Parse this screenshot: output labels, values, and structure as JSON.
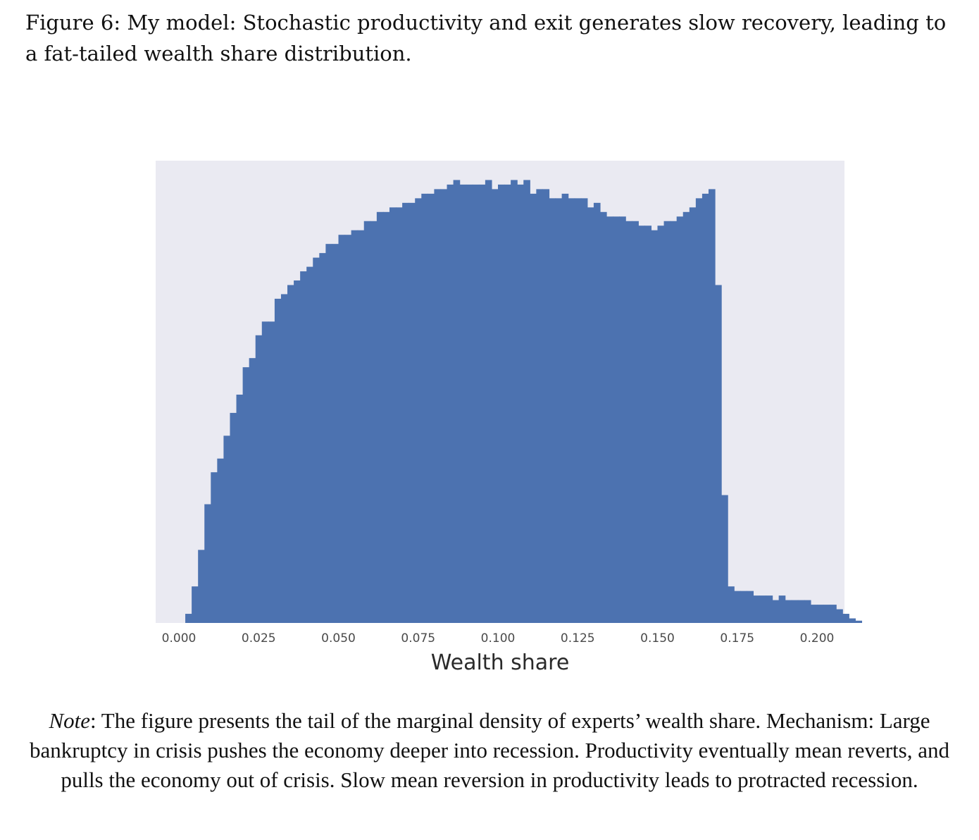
{
  "figure": {
    "caption": "Figure 6: My model: Stochastic productivity and exit generates slow recovery, leading to a fat-tailed wealth share distribution."
  },
  "note": {
    "label": "Note",
    "text": ": The figure presents the tail of the marginal density of experts’ wealth share. Mechanism: Large bankruptcy in crisis pushes the economy deeper into recession. Productivity eventually mean reverts, and pulls the economy out of crisis. Slow mean reversion in productivity leads to protracted recession."
  },
  "chart_data": {
    "type": "bar",
    "xlabel": "Wealth share",
    "xlim": [
      0.0,
      0.2
    ],
    "ylim": [
      0,
      100
    ],
    "grid": false,
    "colors": {
      "bar": "#4c72b0",
      "background": "#eaeaf2"
    },
    "xticks": [
      "0.000",
      "0.025",
      "0.050",
      "0.075",
      "0.100",
      "0.125",
      "0.150",
      "0.175",
      "0.200"
    ],
    "bin_start": 0.002,
    "bin_width": 0.002,
    "values": [
      2,
      8,
      16,
      26,
      33,
      36,
      41,
      46,
      50,
      56,
      58,
      63,
      66,
      66,
      71,
      72,
      74,
      75,
      77,
      78,
      80,
      81,
      83,
      83,
      85,
      85,
      86,
      86,
      88,
      88,
      90,
      90,
      91,
      91,
      92,
      92,
      93,
      94,
      94,
      95,
      95,
      96,
      97,
      96,
      96,
      96,
      96,
      97,
      95,
      96,
      96,
      97,
      96,
      97,
      94,
      95,
      95,
      93,
      93,
      94,
      93,
      93,
      93,
      91,
      92,
      90,
      89,
      89,
      89,
      88,
      88,
      87,
      87,
      86,
      87,
      88,
      88,
      89,
      90,
      91,
      93,
      94,
      95,
      74,
      28,
      8,
      7,
      7,
      7,
      6,
      6,
      6,
      5,
      6,
      5,
      5,
      5,
      5,
      4,
      4,
      4,
      4,
      3,
      2,
      1,
      0.5
    ]
  }
}
